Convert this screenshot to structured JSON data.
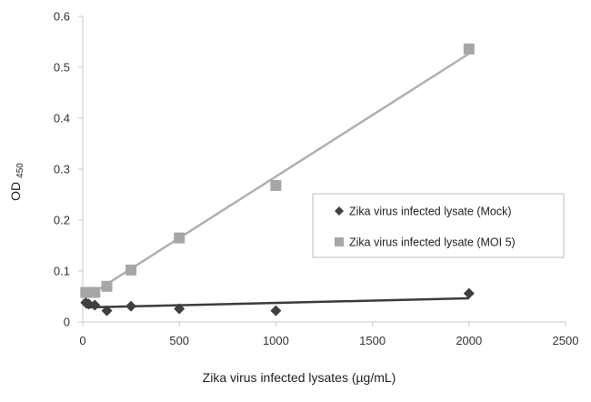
{
  "chart_data": {
    "type": "scatter",
    "title": "",
    "xlabel": "Zika virus infected lysates (µg/mL)",
    "ylabel": "OD",
    "ylabel_subscript": "450",
    "xlim": [
      0,
      2500
    ],
    "ylim": [
      0,
      0.6
    ],
    "x_ticks": [
      0,
      500,
      1000,
      1500,
      2000,
      2500
    ],
    "y_ticks": [
      0,
      0.1,
      0.2,
      0.3,
      0.4,
      0.5,
      0.6
    ],
    "x_tick_labels": [
      "0",
      "500",
      "1000",
      "1500",
      "2000",
      "2500"
    ],
    "y_tick_labels": [
      "0",
      "0.1",
      "0.2",
      "0.3",
      "0.4",
      "0.5",
      "0.6"
    ],
    "grid": false,
    "legend_position": "right-middle",
    "series": [
      {
        "name": "Zika virus infected lysate (Mock)",
        "marker": "diamond",
        "color": "#404040",
        "trendline": "linear",
        "x": [
          15.6,
          31.3,
          62.5,
          125,
          250,
          500,
          1000,
          2000
        ],
        "y": [
          0.038,
          0.035,
          0.033,
          0.022,
          0.031,
          0.026,
          0.022,
          0.056
        ]
      },
      {
        "name": "Zika virus infected lysate (MOI 5)",
        "marker": "square",
        "color": "#a6a6a6",
        "trendline": "linear",
        "x": [
          15.6,
          31.3,
          62.5,
          125,
          250,
          500,
          1000,
          2000
        ],
        "y": [
          0.058,
          0.058,
          0.058,
          0.07,
          0.102,
          0.165,
          0.268,
          0.536
        ]
      }
    ]
  }
}
